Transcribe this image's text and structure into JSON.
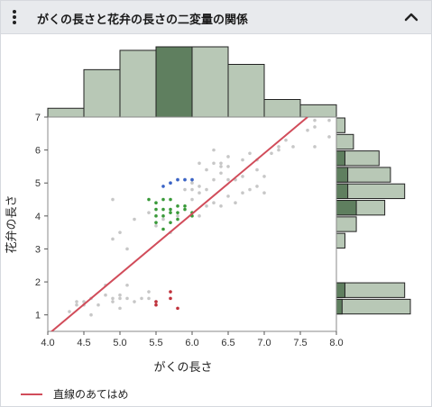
{
  "header": {
    "title": "がくの長さと花弁の長さの二変量の関係",
    "menu_icon": "kebab-menu-icon",
    "collapse_icon": "chevron-up-icon"
  },
  "colors": {
    "histogram_fill": "#b8c8b6",
    "histogram_highlight": "#5f7f5f",
    "fit_line": "#d14c5a",
    "point_gray": "#c7c7c7",
    "point_blue": "#3a63c7",
    "point_green": "#3a9a3a",
    "point_red": "#c0313b"
  },
  "legend": {
    "fit_label": "直線のあてはめ"
  },
  "chart_data": {
    "type": "scatter",
    "xlabel": "がくの長さ",
    "ylabel": "花弁の長さ",
    "xlim": [
      4.0,
      8.0
    ],
    "ylim": [
      0.5,
      7.0
    ],
    "x_ticks": [
      "4.0",
      "4.5",
      "5.0",
      "5.5",
      "6.0",
      "6.5",
      "7.0",
      "7.5",
      "8.0"
    ],
    "y_ticks": [
      "1",
      "2",
      "3",
      "4",
      "5",
      "6",
      "7"
    ],
    "fit_line": {
      "x": [
        4.0,
        7.6
      ],
      "y": [
        0.4,
        7.0
      ]
    },
    "series": [
      {
        "color": "gray",
        "points": [
          [
            4.3,
            1.1
          ],
          [
            4.4,
            1.3
          ],
          [
            4.5,
            1.4
          ],
          [
            4.6,
            1.5
          ],
          [
            4.7,
            1.3
          ],
          [
            4.8,
            1.6
          ],
          [
            4.9,
            1.4
          ],
          [
            5.0,
            1.5
          ],
          [
            5.0,
            1.6
          ],
          [
            5.1,
            1.5
          ],
          [
            5.2,
            1.4
          ],
          [
            5.3,
            1.5
          ],
          [
            5.4,
            1.7
          ],
          [
            5.5,
            1.4
          ],
          [
            4.6,
            1.0
          ],
          [
            4.8,
            1.9
          ],
          [
            4.9,
            1.5
          ],
          [
            5.1,
            1.9
          ],
          [
            4.4,
            1.4
          ],
          [
            4.5,
            1.3
          ],
          [
            5.0,
            1.2
          ],
          [
            5.4,
            1.5
          ],
          [
            4.9,
            3.3
          ],
          [
            4.9,
            4.5
          ],
          [
            5.0,
            3.5
          ],
          [
            5.1,
            3.0
          ],
          [
            5.2,
            3.9
          ],
          [
            5.4,
            4.1
          ],
          [
            5.5,
            3.7
          ],
          [
            5.6,
            3.9
          ],
          [
            5.7,
            3.5
          ],
          [
            5.8,
            4.0
          ],
          [
            6.0,
            4.5
          ],
          [
            6.1,
            4.0
          ],
          [
            6.2,
            4.3
          ],
          [
            6.3,
            4.4
          ],
          [
            6.4,
            4.3
          ],
          [
            6.5,
            4.6
          ],
          [
            6.6,
            4.4
          ],
          [
            6.7,
            4.7
          ],
          [
            6.8,
            4.8
          ],
          [
            6.9,
            4.9
          ],
          [
            7.0,
            4.7
          ],
          [
            5.7,
            5.0
          ],
          [
            5.8,
            5.1
          ],
          [
            6.0,
            5.0
          ],
          [
            6.1,
            5.6
          ],
          [
            6.2,
            5.4
          ],
          [
            6.3,
            5.6
          ],
          [
            6.4,
            5.5
          ],
          [
            6.5,
            5.8
          ],
          [
            6.6,
            5.1
          ],
          [
            6.7,
            5.7
          ],
          [
            6.8,
            5.9
          ],
          [
            6.9,
            5.7
          ],
          [
            7.0,
            5.2
          ],
          [
            7.1,
            5.9
          ],
          [
            7.2,
            6.0
          ],
          [
            7.3,
            6.3
          ],
          [
            7.4,
            6.1
          ],
          [
            7.6,
            6.6
          ],
          [
            7.7,
            6.7
          ],
          [
            7.7,
            6.1
          ],
          [
            7.9,
            6.4
          ],
          [
            6.3,
            6.0
          ],
          [
            6.5,
            5.5
          ],
          [
            6.7,
            5.2
          ],
          [
            6.1,
            4.7
          ],
          [
            6.0,
            5.1
          ],
          [
            5.9,
            4.8
          ],
          [
            6.4,
            5.3
          ],
          [
            6.2,
            4.8
          ],
          [
            7.2,
            6.1
          ],
          [
            6.3,
            5.1
          ],
          [
            6.9,
            5.4
          ],
          [
            7.7,
            6.9
          ],
          [
            7.9,
            6.9
          ],
          [
            5.9,
            5.1
          ],
          [
            6.1,
            4.9
          ],
          [
            6.5,
            5.1
          ],
          [
            6.4,
            5.6
          ],
          [
            6.0,
            4.8
          ]
        ]
      },
      {
        "color": "green",
        "points": [
          [
            5.5,
            3.8
          ],
          [
            5.5,
            4.0
          ],
          [
            5.6,
            4.0
          ],
          [
            5.6,
            4.2
          ],
          [
            5.7,
            4.1
          ],
          [
            5.7,
            4.2
          ],
          [
            5.7,
            4.5
          ],
          [
            5.8,
            3.9
          ],
          [
            5.8,
            4.1
          ],
          [
            5.9,
            4.2
          ],
          [
            5.9,
            4.3
          ],
          [
            6.0,
            4.0
          ],
          [
            5.5,
            4.4
          ],
          [
            5.6,
            3.6
          ],
          [
            5.6,
            4.5
          ],
          [
            5.7,
            3.8
          ],
          [
            5.8,
            4.3
          ],
          [
            6.0,
            4.1
          ],
          [
            5.4,
            4.5
          ],
          [
            5.5,
            4.2
          ]
        ]
      },
      {
        "color": "blue",
        "points": [
          [
            5.6,
            4.9
          ],
          [
            5.7,
            5.0
          ],
          [
            5.8,
            5.1
          ],
          [
            5.9,
            5.1
          ],
          [
            6.0,
            5.1
          ]
        ]
      },
      {
        "color": "red",
        "points": [
          [
            5.5,
            1.3
          ],
          [
            5.7,
            1.5
          ],
          [
            5.7,
            1.7
          ],
          [
            5.8,
            1.2
          ],
          [
            5.5,
            1.4
          ]
        ]
      }
    ],
    "top_histogram": {
      "bins": [
        4.0,
        4.5,
        5.0,
        5.5,
        6.0,
        6.5,
        7.0,
        7.5,
        8.0
      ],
      "counts": [
        5,
        27,
        38,
        40,
        40,
        30,
        10,
        7
      ],
      "highlight_index": 3
    },
    "right_histogram": {
      "bins": [
        1.0,
        1.5,
        2.0,
        2.5,
        3.0,
        3.5,
        4.0,
        4.5,
        5.0,
        5.5,
        6.0,
        6.5,
        7.0
      ],
      "counts": [
        26,
        24,
        0,
        0,
        3,
        7,
        17,
        24,
        19,
        15,
        6,
        3
      ],
      "highlight": [
        2,
        3,
        0,
        0,
        0,
        0,
        7,
        4,
        4,
        3,
        0,
        0
      ]
    }
  }
}
